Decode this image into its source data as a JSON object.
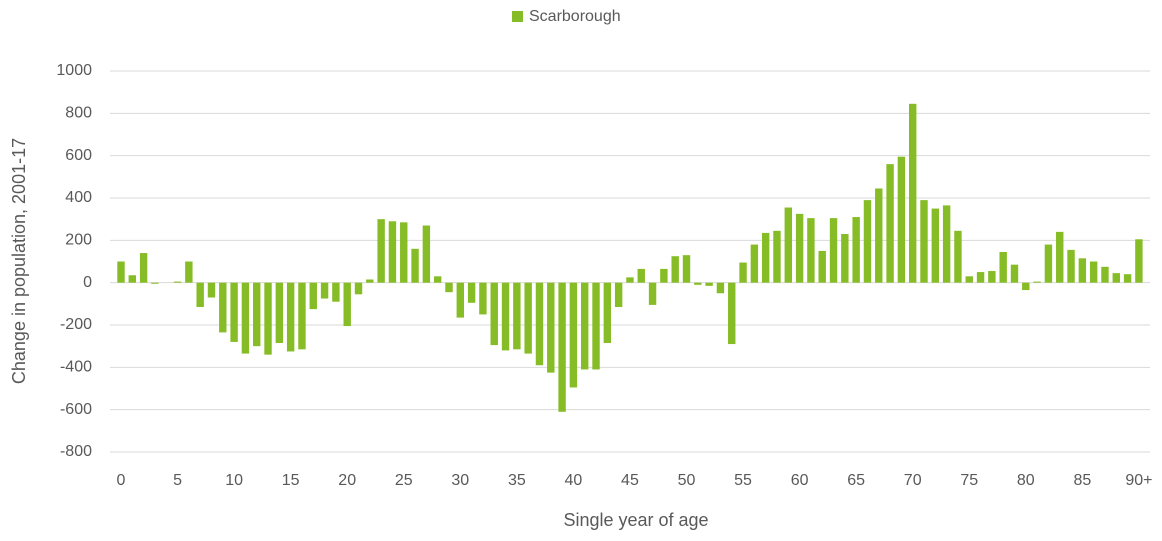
{
  "chart_data": {
    "type": "bar",
    "legend": "Scarborough",
    "x_label": "Single year of age",
    "y_label": "Change in population, 2001-17",
    "color": "#86bc25",
    "categories": [
      "0",
      null,
      null,
      null,
      null,
      "5",
      null,
      null,
      null,
      null,
      "10",
      null,
      null,
      null,
      null,
      "15",
      null,
      null,
      null,
      null,
      "20",
      null,
      null,
      null,
      null,
      "25",
      null,
      null,
      null,
      null,
      "30",
      null,
      null,
      null,
      null,
      "35",
      null,
      null,
      null,
      null,
      "40",
      null,
      null,
      null,
      null,
      "45",
      null,
      null,
      null,
      null,
      "50",
      null,
      null,
      null,
      null,
      "55",
      null,
      null,
      null,
      null,
      "60",
      null,
      null,
      null,
      null,
      "65",
      null,
      null,
      null,
      null,
      "70",
      null,
      null,
      null,
      null,
      "75",
      null,
      null,
      null,
      null,
      "80",
      null,
      null,
      null,
      null,
      "85",
      null,
      null,
      null,
      null,
      "90+"
    ],
    "values": [
      100,
      35,
      140,
      -5,
      0,
      5,
      100,
      -115,
      -70,
      -235,
      -280,
      -335,
      -300,
      -340,
      -285,
      -325,
      -315,
      -125,
      -75,
      -90,
      -205,
      -55,
      15,
      300,
      290,
      285,
      160,
      270,
      30,
      -45,
      -165,
      -95,
      -150,
      -295,
      -320,
      -315,
      -335,
      -390,
      -425,
      -610,
      -495,
      -410,
      -410,
      -285,
      -115,
      25,
      65,
      -105,
      65,
      125,
      130,
      -10,
      -15,
      -50,
      -290,
      95,
      180,
      235,
      245,
      355,
      325,
      305,
      150,
      305,
      230,
      310,
      390,
      445,
      560,
      595,
      845,
      390,
      350,
      365,
      245,
      30,
      50,
      55,
      145,
      85,
      -35,
      5,
      180,
      240,
      155,
      115,
      100,
      75,
      45,
      40,
      205
    ],
    "ylim": [
      -800,
      1000
    ],
    "yticks": [
      -800,
      -600,
      -400,
      -200,
      0,
      200,
      400,
      600,
      800,
      1000
    ],
    "grid": true,
    "legend_position": "top"
  }
}
